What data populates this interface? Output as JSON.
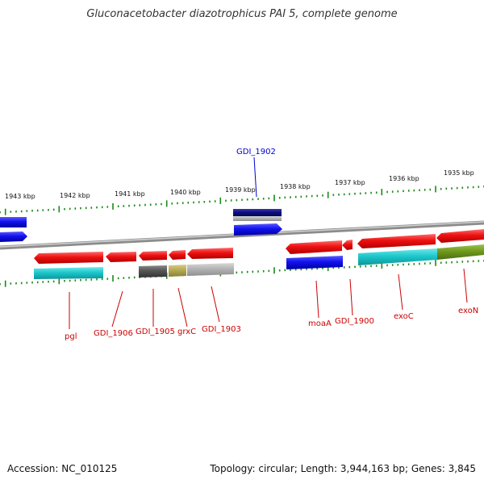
{
  "map": {
    "title": "Gluconacetobacter diazotrophicus PAI 5, complete genome",
    "accession": "Accession: NC_010125",
    "topology": "Topology: circular; Length: 3,944,163 bp; Genes: 3,845"
  },
  "ruler": {
    "ticks": [
      {
        "label": "1943 kbp"
      },
      {
        "label": "1942 kbp"
      },
      {
        "label": "1941 kbp"
      },
      {
        "label": "1940 kbp"
      },
      {
        "label": "1939 kbp"
      },
      {
        "label": "1938 kbp"
      },
      {
        "label": "1937 kbp"
      },
      {
        "label": "1936 kbp"
      },
      {
        "label": "1935 kbp"
      }
    ]
  },
  "genes": {
    "GDI_1902": "GDI_1902",
    "pgl": "pgl",
    "GDI_1906": "GDI_1906",
    "GDI_1905": "GDI_1905",
    "grxC": "grxC",
    "GDI_1903": "GDI_1903",
    "moaA": "moaA",
    "GDI_1900": "GDI_1900",
    "exoC": "exoC",
    "exoN": "exoN"
  },
  "colors": {
    "cds": "#ee1111",
    "highlight": "#1111ee",
    "navy": "#0b0b7a",
    "cyan": "#1cc8cc",
    "olive": "#6f9a1e",
    "dark_gray": "#555555",
    "khaki": "#b5aa55",
    "light_gray": "#b4b4b4",
    "backbone": "#8c8c8c",
    "ruler": "#1a8a1a",
    "label_red": "#cc0000",
    "label_blue": "#0000cc"
  }
}
